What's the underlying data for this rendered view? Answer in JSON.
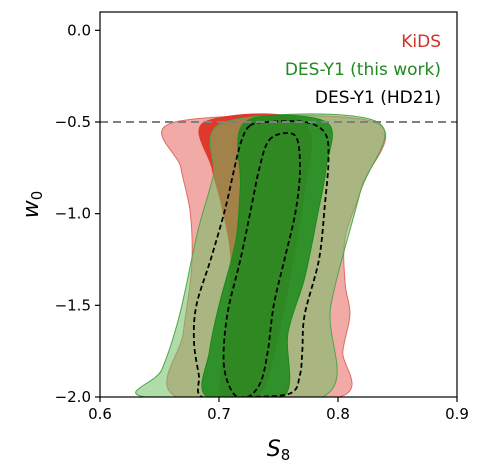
{
  "chart_data": {
    "type": "contour",
    "xlabel_base": "S",
    "xlabel_sub": "8",
    "ylabel_base": "w",
    "ylabel_sub": "0",
    "xlim": [
      0.6,
      0.9
    ],
    "ylim": [
      -2.0,
      0.1
    ],
    "xticks": [
      {
        "value": 0.6,
        "label": "0.6"
      },
      {
        "value": 0.7,
        "label": "0.7"
      },
      {
        "value": 0.8,
        "label": "0.8"
      },
      {
        "value": 0.9,
        "label": "0.9"
      }
    ],
    "yticks": [
      {
        "value": 0.0,
        "label": "0.0"
      },
      {
        "value": -0.5,
        "label": "−0.5"
      },
      {
        "value": -1.0,
        "label": "−1.0"
      },
      {
        "value": -1.5,
        "label": "−1.5"
      },
      {
        "value": -2.0,
        "label": "−2.0"
      }
    ],
    "prior_line": {
      "y": -0.5,
      "color": "#808080",
      "style": "dashed"
    },
    "legend": [
      {
        "label": "KiDS",
        "color": "#d62f27"
      },
      {
        "label": "DES-Y1 (this work)",
        "color": "#1f8a1f"
      },
      {
        "label": "DES-Y1 (HD21)",
        "color": "#000000"
      }
    ],
    "series": [
      {
        "name": "KiDS",
        "contours": [
          {
            "level": "95%",
            "fill": "#ee8e88",
            "opacity": 0.75,
            "stroke": "#e06a62",
            "points": [
              [
                0.663,
                -0.5
              ],
              [
                0.83,
                -0.5
              ],
              [
                0.82,
                -0.85
              ],
              [
                0.806,
                -1.13
              ],
              [
                0.806,
                -1.38
              ],
              [
                0.81,
                -1.55
              ],
              [
                0.804,
                -1.75
              ],
              [
                0.801,
                -2.0
              ],
              [
                0.665,
                -2.0
              ],
              [
                0.67,
                -1.65
              ],
              [
                0.677,
                -1.3
              ],
              [
                0.676,
                -1.0
              ],
              [
                0.668,
                -0.75
              ]
            ]
          },
          {
            "level": "68%",
            "fill": "#e0392c",
            "opacity": 1.0,
            "stroke": "#e0392c",
            "points": [
              [
                0.688,
                -0.5
              ],
              [
                0.771,
                -0.5
              ],
              [
                0.77,
                -0.95
              ],
              [
                0.745,
                -1.8
              ],
              [
                0.73,
                -2.0
              ],
              [
                0.702,
                -2.0
              ],
              [
                0.706,
                -1.65
              ],
              [
                0.71,
                -1.25
              ],
              [
                0.702,
                -0.95
              ],
              [
                0.694,
                -0.75
              ]
            ]
          }
        ]
      },
      {
        "name": "DES-Y1 (this work)",
        "contours": [
          {
            "level": "95%",
            "fill": "#6fbf62",
            "opacity": 0.55,
            "stroke": "#4fa34f",
            "points": [
              [
                0.705,
                -0.5
              ],
              [
                0.833,
                -0.5
              ],
              [
                0.818,
                -0.9
              ],
              [
                0.794,
                -1.5
              ],
              [
                0.787,
                -2.0
              ],
              [
                0.638,
                -2.0
              ],
              [
                0.652,
                -1.85
              ],
              [
                0.667,
                -1.55
              ],
              [
                0.682,
                -1.1
              ],
              [
                0.695,
                -0.8
              ]
            ]
          },
          {
            "level": "68%",
            "fill": "#1b8a1b",
            "opacity": 0.85,
            "stroke": "#1b8a1b",
            "points": [
              [
                0.722,
                -0.5
              ],
              [
                0.79,
                -0.5
              ],
              [
                0.79,
                -0.75
              ],
              [
                0.783,
                -1.0
              ],
              [
                0.772,
                -1.35
              ],
              [
                0.758,
                -1.65
              ],
              [
                0.754,
                -2.0
              ],
              [
                0.69,
                -2.0
              ],
              [
                0.692,
                -1.75
              ],
              [
                0.7,
                -1.5
              ],
              [
                0.714,
                -1.15
              ],
              [
                0.718,
                -0.85
              ]
            ]
          }
        ]
      },
      {
        "name": "DES-Y1 (HD21)",
        "contours": [
          {
            "level": "95%",
            "closed": true,
            "stroke": "#000000",
            "dash": true,
            "points": [
              [
                0.726,
                -0.52
              ],
              [
                0.74,
                -0.5
              ],
              [
                0.772,
                -0.5
              ],
              [
                0.789,
                -0.56
              ],
              [
                0.792,
                -0.7
              ],
              [
                0.789,
                -0.95
              ],
              [
                0.784,
                -1.25
              ],
              [
                0.772,
                -1.55
              ],
              [
                0.77,
                -1.75
              ],
              [
                0.768,
                -1.88
              ],
              [
                0.76,
                -1.98
              ],
              [
                0.725,
                -2.0
              ],
              [
                0.686,
                -2.0
              ],
              [
                0.683,
                -1.88
              ],
              [
                0.679,
                -1.7
              ],
              [
                0.681,
                -1.5
              ],
              [
                0.693,
                -1.25
              ],
              [
                0.705,
                -0.98
              ],
              [
                0.713,
                -0.75
              ],
              [
                0.719,
                -0.6
              ]
            ]
          },
          {
            "level": "68%",
            "closed": true,
            "stroke": "#000000",
            "dash": true,
            "points": [
              [
                0.742,
                -0.6
              ],
              [
                0.757,
                -0.56
              ],
              [
                0.766,
                -0.6
              ],
              [
                0.768,
                -0.78
              ],
              [
                0.764,
                -1.0
              ],
              [
                0.755,
                -1.25
              ],
              [
                0.746,
                -1.5
              ],
              [
                0.741,
                -1.75
              ],
              [
                0.735,
                -1.92
              ],
              [
                0.724,
                -2.0
              ],
              [
                0.712,
                -1.98
              ],
              [
                0.704,
                -1.82
              ],
              [
                0.707,
                -1.55
              ],
              [
                0.718,
                -1.25
              ],
              [
                0.727,
                -0.97
              ],
              [
                0.734,
                -0.75
              ]
            ]
          }
        ]
      }
    ]
  }
}
